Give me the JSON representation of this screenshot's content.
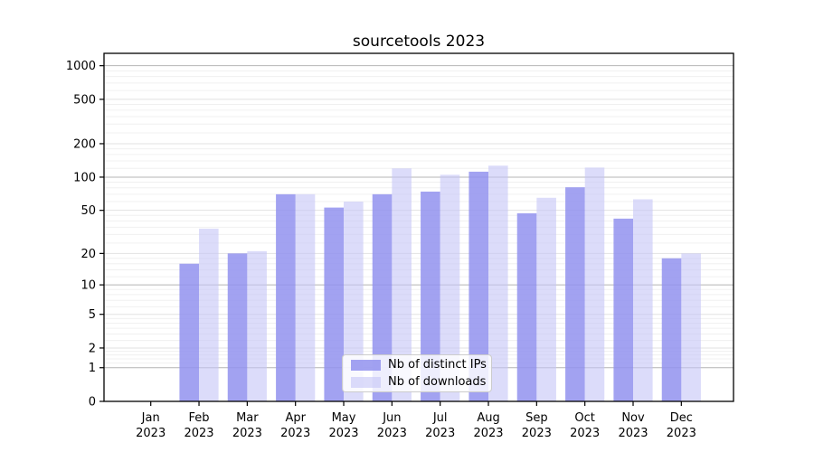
{
  "title": "sourcetools 2023",
  "chart_data": {
    "type": "bar",
    "title": "sourcetools 2023",
    "categories": [
      "Jan",
      "Feb",
      "Mar",
      "Apr",
      "May",
      "Jun",
      "Jul",
      "Aug",
      "Sep",
      "Oct",
      "Nov",
      "Dec"
    ],
    "year_label": "2023",
    "series": [
      {
        "name": "Nb of distinct IPs",
        "color": "#9292ee",
        "opacity": 0.85,
        "values": [
          0,
          16,
          20,
          70,
          53,
          70,
          74,
          112,
          47,
          81,
          42,
          18
        ]
      },
      {
        "name": "Nb of downloads",
        "color": "#c5c5f6",
        "opacity": 0.6,
        "values": [
          0,
          34,
          21,
          70,
          60,
          120,
          105,
          127,
          65,
          122,
          63,
          20
        ]
      }
    ],
    "y_ticks": [
      0,
      1,
      2,
      5,
      10,
      20,
      50,
      100,
      200,
      500,
      1000
    ],
    "ylim": [
      0,
      1290
    ],
    "yscale": "log(1+x) — logarithmic axis including zero",
    "xlabel": "",
    "ylabel": "",
    "grid": "horizontal major and minor gridlines",
    "legend_position": "lower center"
  }
}
